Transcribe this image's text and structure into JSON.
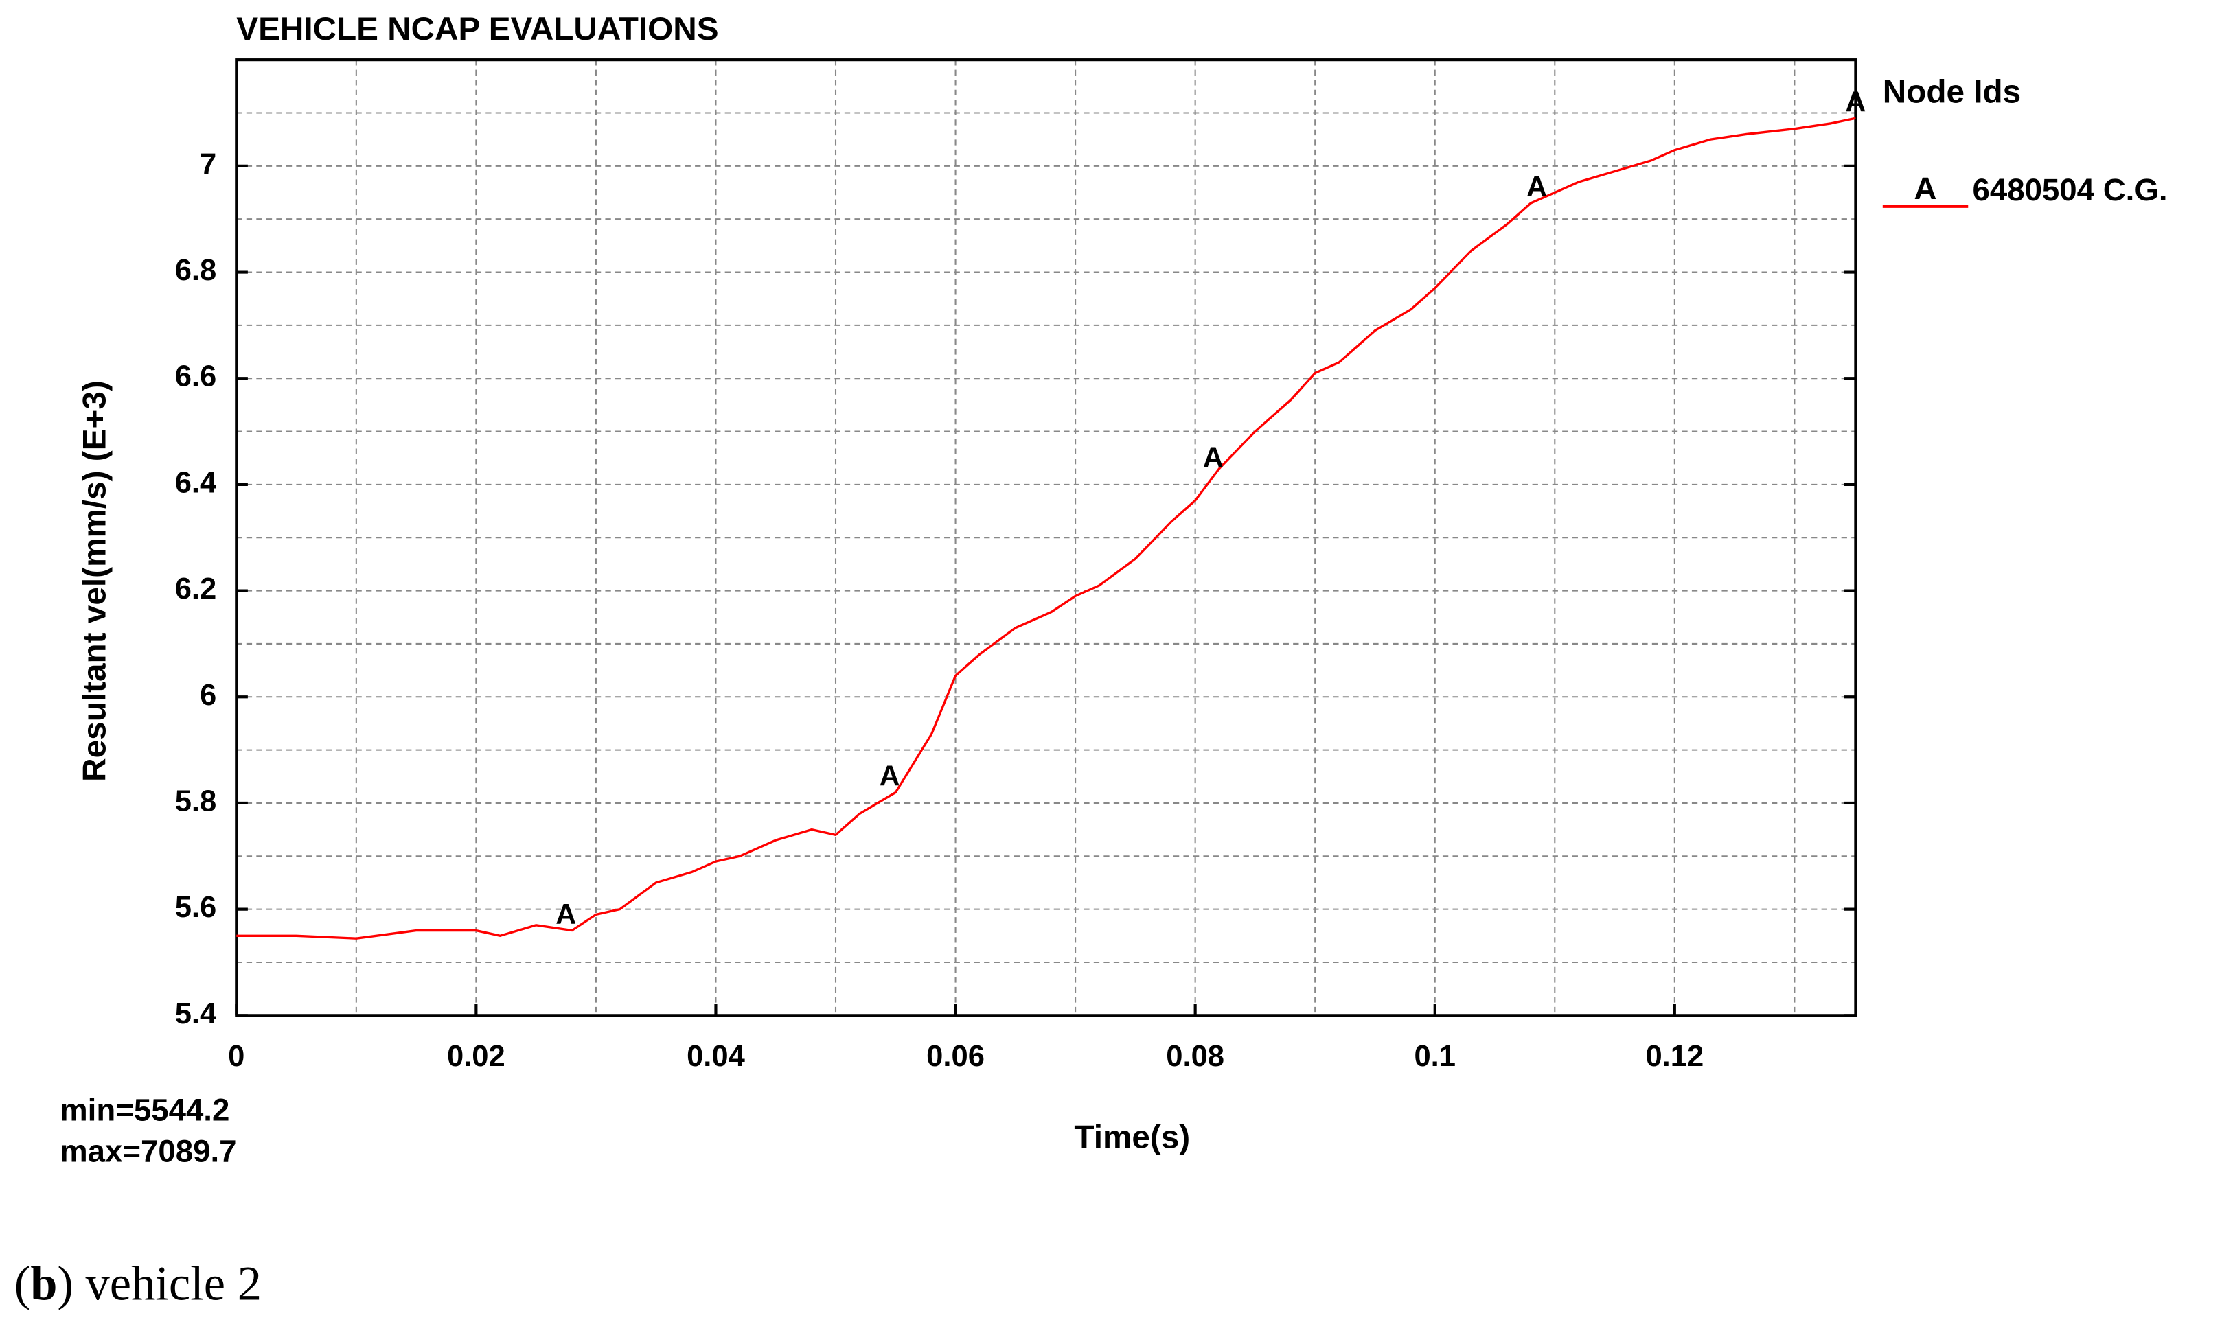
{
  "chart_data": {
    "type": "line",
    "title": "VEHICLE NCAP EVALUATIONS",
    "x_label": "Time(s)",
    "y_label": "Resultant vel(mm/s) (E+3)",
    "legend_title": "Node Ids",
    "annotations": [
      "min=5544.2",
      "max=7089.7"
    ],
    "caption": [
      "(",
      "b",
      ") vehicle 2"
    ],
    "xlim": [
      0,
      0.1351
    ],
    "ylim": [
      5.4,
      7.2
    ],
    "xticks": [
      0,
      0.02,
      0.04,
      0.06,
      0.08,
      0.1,
      0.12
    ],
    "yticks": [
      5.4,
      5.6,
      5.8,
      6,
      6.2,
      6.4,
      6.6,
      6.8,
      7
    ],
    "x_minor_ticks": [
      0.01,
      0.03,
      0.05,
      0.07,
      0.09,
      0.11,
      0.13
    ],
    "y_minor_ticks": [
      5.5,
      5.7,
      5.9,
      6.1,
      6.3,
      6.5,
      6.7,
      6.9,
      7.1
    ],
    "grid": true,
    "x": [
      0,
      0.005,
      0.01,
      0.015,
      0.02,
      0.022,
      0.025,
      0.028,
      0.03,
      0.032,
      0.035,
      0.038,
      0.04,
      0.042,
      0.045,
      0.048,
      0.05,
      0.052,
      0.055,
      0.058,
      0.06,
      0.062,
      0.065,
      0.068,
      0.07,
      0.072,
      0.075,
      0.078,
      0.08,
      0.082,
      0.085,
      0.088,
      0.09,
      0.092,
      0.095,
      0.098,
      0.1,
      0.103,
      0.106,
      0.108,
      0.11,
      0.112,
      0.115,
      0.118,
      0.12,
      0.123,
      0.126,
      0.13,
      0.133,
      0.1351
    ],
    "series": [
      {
        "name": "6480504 C.G.",
        "symbol": "A",
        "color": "#ff0000",
        "values": [
          5.55,
          5.55,
          5.545,
          5.56,
          5.56,
          5.55,
          5.57,
          5.56,
          5.59,
          5.6,
          5.65,
          5.67,
          5.69,
          5.7,
          5.73,
          5.75,
          5.74,
          5.78,
          5.82,
          5.93,
          6.04,
          6.08,
          6.13,
          6.16,
          6.19,
          6.21,
          6.26,
          6.33,
          6.37,
          6.43,
          6.5,
          6.56,
          6.61,
          6.63,
          6.69,
          6.73,
          6.77,
          6.84,
          6.89,
          6.93,
          6.95,
          6.97,
          6.99,
          7.01,
          7.03,
          7.05,
          7.06,
          7.07,
          7.08,
          7.09
        ],
        "symbol_x": [
          0.0275,
          0.0545,
          0.0815,
          0.1085,
          0.1351
        ],
        "symbol_y": [
          5.56,
          5.82,
          6.42,
          6.93,
          7.09
        ]
      }
    ]
  }
}
